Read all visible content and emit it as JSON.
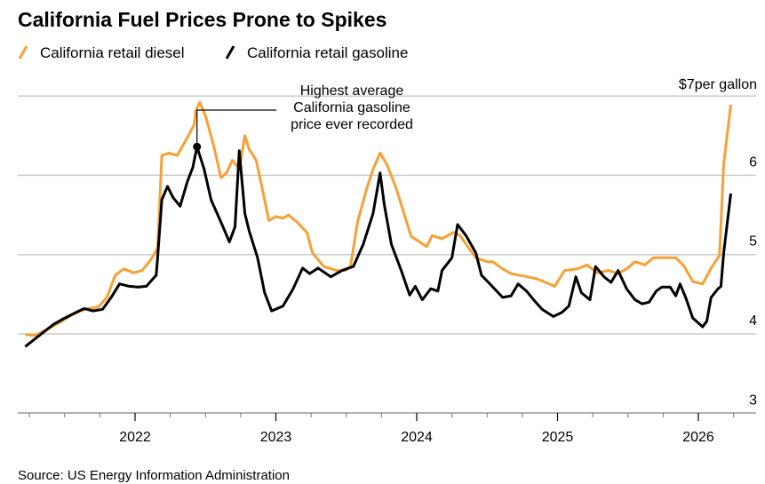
{
  "chart_data": {
    "type": "line",
    "title": "California Fuel Prices Prone to Spikes",
    "unit_label": "per gallon",
    "xlabel": "",
    "ylabel": "",
    "xlim": [
      2021.1,
      2026.4
    ],
    "ylim": [
      3,
      7
    ],
    "yticks": [
      {
        "value": 7,
        "label": "$7"
      },
      {
        "value": 6,
        "label": "6"
      },
      {
        "value": 5,
        "label": "5"
      },
      {
        "value": 4,
        "label": "4"
      },
      {
        "value": 3,
        "label": "3"
      }
    ],
    "xticks": [
      {
        "value": 2022,
        "label": "2022"
      },
      {
        "value": 2023,
        "label": "2023"
      },
      {
        "value": 2024,
        "label": "2024"
      },
      {
        "value": 2025,
        "label": "2025"
      },
      {
        "value": 2026,
        "label": "2026"
      }
    ],
    "grid": true,
    "legend_position": "top-left",
    "series": [
      {
        "name": "California retail diesel",
        "color": "#f7a035",
        "points": [
          [
            2021.22,
            3.99
          ],
          [
            2021.29,
            3.98
          ],
          [
            2021.39,
            4.07
          ],
          [
            2021.47,
            4.15
          ],
          [
            2021.55,
            4.24
          ],
          [
            2021.61,
            4.29
          ],
          [
            2021.67,
            4.32
          ],
          [
            2021.74,
            4.34
          ],
          [
            2021.8,
            4.46
          ],
          [
            2021.86,
            4.74
          ],
          [
            2021.92,
            4.82
          ],
          [
            2021.99,
            4.77
          ],
          [
            2022.05,
            4.8
          ],
          [
            2022.11,
            4.93
          ],
          [
            2022.16,
            5.08
          ],
          [
            2022.19,
            6.25
          ],
          [
            2022.24,
            6.28
          ],
          [
            2022.3,
            6.25
          ],
          [
            2022.37,
            6.47
          ],
          [
            2022.42,
            6.64
          ],
          [
            2022.43,
            6.81
          ],
          [
            2022.46,
            6.92
          ],
          [
            2022.5,
            6.75
          ],
          [
            2022.56,
            6.36
          ],
          [
            2022.61,
            5.97
          ],
          [
            2022.65,
            6.03
          ],
          [
            2022.69,
            6.19
          ],
          [
            2022.74,
            6.08
          ],
          [
            2022.78,
            6.5
          ],
          [
            2022.81,
            6.33
          ],
          [
            2022.86,
            6.19
          ],
          [
            2022.9,
            5.86
          ],
          [
            2022.95,
            5.43
          ],
          [
            2023.0,
            5.48
          ],
          [
            2023.05,
            5.46
          ],
          [
            2023.09,
            5.5
          ],
          [
            2023.15,
            5.41
          ],
          [
            2023.22,
            5.28
          ],
          [
            2023.26,
            5.02
          ],
          [
            2023.34,
            4.85
          ],
          [
            2023.43,
            4.8
          ],
          [
            2023.49,
            4.8
          ],
          [
            2023.53,
            4.85
          ],
          [
            2023.58,
            5.41
          ],
          [
            2023.64,
            5.8
          ],
          [
            2023.69,
            6.08
          ],
          [
            2023.74,
            6.28
          ],
          [
            2023.79,
            6.13
          ],
          [
            2023.85,
            5.86
          ],
          [
            2023.91,
            5.52
          ],
          [
            2023.96,
            5.23
          ],
          [
            2024.02,
            5.16
          ],
          [
            2024.07,
            5.1
          ],
          [
            2024.11,
            5.24
          ],
          [
            2024.18,
            5.2
          ],
          [
            2024.26,
            5.28
          ],
          [
            2024.31,
            5.24
          ],
          [
            2024.35,
            5.13
          ],
          [
            2024.42,
            4.96
          ],
          [
            2024.5,
            4.91
          ],
          [
            2024.54,
            4.91
          ],
          [
            2024.61,
            4.82
          ],
          [
            2024.67,
            4.76
          ],
          [
            2024.76,
            4.73
          ],
          [
            2024.86,
            4.69
          ],
          [
            2024.98,
            4.6
          ],
          [
            2025.05,
            4.8
          ],
          [
            2025.14,
            4.82
          ],
          [
            2025.21,
            4.87
          ],
          [
            2025.28,
            4.77
          ],
          [
            2025.36,
            4.8
          ],
          [
            2025.43,
            4.76
          ],
          [
            2025.49,
            4.82
          ],
          [
            2025.55,
            4.91
          ],
          [
            2025.62,
            4.87
          ],
          [
            2025.68,
            4.96
          ],
          [
            2025.76,
            4.96
          ],
          [
            2025.84,
            4.96
          ],
          [
            2025.9,
            4.85
          ],
          [
            2025.96,
            4.66
          ],
          [
            2026.03,
            4.63
          ],
          [
            2026.09,
            4.83
          ],
          [
            2026.15,
            4.99
          ],
          [
            2026.18,
            6.14
          ],
          [
            2026.23,
            6.89
          ]
        ]
      },
      {
        "name": "California retail gasoline",
        "color": "#000000",
        "points": [
          [
            2021.22,
            3.84
          ],
          [
            2021.32,
            3.98
          ],
          [
            2021.42,
            4.12
          ],
          [
            2021.48,
            4.18
          ],
          [
            2021.58,
            4.27
          ],
          [
            2021.64,
            4.32
          ],
          [
            2021.7,
            4.29
          ],
          [
            2021.77,
            4.31
          ],
          [
            2021.83,
            4.46
          ],
          [
            2021.89,
            4.63
          ],
          [
            2021.96,
            4.6
          ],
          [
            2022.02,
            4.59
          ],
          [
            2022.08,
            4.6
          ],
          [
            2022.15,
            4.74
          ],
          [
            2022.16,
            4.96
          ],
          [
            2022.19,
            5.69
          ],
          [
            2022.23,
            5.86
          ],
          [
            2022.27,
            5.72
          ],
          [
            2022.32,
            5.61
          ],
          [
            2022.37,
            5.91
          ],
          [
            2022.41,
            6.1
          ],
          [
            2022.44,
            6.36
          ],
          [
            2022.49,
            6.08
          ],
          [
            2022.54,
            5.69
          ],
          [
            2022.61,
            5.41
          ],
          [
            2022.67,
            5.16
          ],
          [
            2022.71,
            5.35
          ],
          [
            2022.74,
            6.31
          ],
          [
            2022.78,
            5.52
          ],
          [
            2022.81,
            5.3
          ],
          [
            2022.87,
            4.96
          ],
          [
            2022.92,
            4.52
          ],
          [
            2022.97,
            4.29
          ],
          [
            2023.05,
            4.35
          ],
          [
            2023.12,
            4.56
          ],
          [
            2023.19,
            4.83
          ],
          [
            2023.24,
            4.76
          ],
          [
            2023.3,
            4.83
          ],
          [
            2023.39,
            4.72
          ],
          [
            2023.47,
            4.8
          ],
          [
            2023.55,
            4.85
          ],
          [
            2023.62,
            5.13
          ],
          [
            2023.69,
            5.52
          ],
          [
            2023.74,
            6.03
          ],
          [
            2023.77,
            5.63
          ],
          [
            2023.82,
            5.13
          ],
          [
            2023.89,
            4.8
          ],
          [
            2023.95,
            4.49
          ],
          [
            2023.99,
            4.6
          ],
          [
            2024.04,
            4.43
          ],
          [
            2024.1,
            4.57
          ],
          [
            2024.15,
            4.54
          ],
          [
            2024.18,
            4.8
          ],
          [
            2024.25,
            4.96
          ],
          [
            2024.29,
            5.38
          ],
          [
            2024.35,
            5.24
          ],
          [
            2024.42,
            5.02
          ],
          [
            2024.46,
            4.74
          ],
          [
            2024.52,
            4.63
          ],
          [
            2024.61,
            4.46
          ],
          [
            2024.67,
            4.48
          ],
          [
            2024.72,
            4.63
          ],
          [
            2024.78,
            4.54
          ],
          [
            2024.83,
            4.43
          ],
          [
            2024.89,
            4.31
          ],
          [
            2024.97,
            4.22
          ],
          [
            2025.03,
            4.27
          ],
          [
            2025.08,
            4.35
          ],
          [
            2025.13,
            4.72
          ],
          [
            2025.17,
            4.52
          ],
          [
            2025.23,
            4.43
          ],
          [
            2025.27,
            4.85
          ],
          [
            2025.33,
            4.72
          ],
          [
            2025.38,
            4.65
          ],
          [
            2025.43,
            4.8
          ],
          [
            2025.49,
            4.57
          ],
          [
            2025.55,
            4.43
          ],
          [
            2025.6,
            4.38
          ],
          [
            2025.65,
            4.4
          ],
          [
            2025.7,
            4.54
          ],
          [
            2025.74,
            4.59
          ],
          [
            2025.8,
            4.59
          ],
          [
            2025.84,
            4.48
          ],
          [
            2025.87,
            4.63
          ],
          [
            2025.91,
            4.46
          ],
          [
            2025.96,
            4.2
          ],
          [
            2026.03,
            4.09
          ],
          [
            2026.06,
            4.16
          ],
          [
            2026.09,
            4.46
          ],
          [
            2026.14,
            4.57
          ],
          [
            2026.16,
            4.6
          ],
          [
            2026.18,
            5.02
          ],
          [
            2026.23,
            5.77
          ]
        ]
      }
    ],
    "annotations": [
      {
        "text_lines": [
          "Highest average",
          "California gasoline",
          "price ever recorded"
        ],
        "x": 2022.44,
        "y": 6.36,
        "series": "California retail gasoline"
      }
    ],
    "source": "Source: US Energy Information Administration"
  }
}
